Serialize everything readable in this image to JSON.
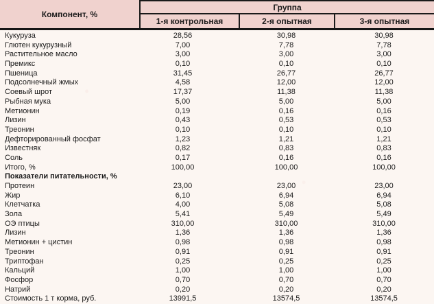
{
  "colors": {
    "header_bg": "#f0d2ce",
    "line": "#1a1a1a",
    "page_bg": "#fcf6f2",
    "text": "#1b1b1b"
  },
  "header": {
    "component_col": "Компонент, %",
    "group_label": "Группа",
    "group_columns": [
      "1-я контрольная",
      "2-я опытная",
      "3-я опытная"
    ]
  },
  "table": {
    "rows": [
      {
        "label": "Кукуруза",
        "values": [
          "28,56",
          "30,98",
          "30,98"
        ],
        "bold": false
      },
      {
        "label": "Глютен кукурузный",
        "values": [
          "7,00",
          "7,78",
          "7,78"
        ],
        "bold": false
      },
      {
        "label": "Растительное масло",
        "values": [
          "3,00",
          "3,00",
          "3,00"
        ],
        "bold": false
      },
      {
        "label": "Премикс",
        "values": [
          "0,10",
          "0,10",
          "0,10"
        ],
        "bold": false
      },
      {
        "label": "Пшеница",
        "values": [
          "31,45",
          "26,77",
          "26,77"
        ],
        "bold": false
      },
      {
        "label": "Подсолнечный жмых",
        "values": [
          "4,58",
          "12,00",
          "12,00"
        ],
        "bold": false
      },
      {
        "label": "Соевый шрот",
        "values": [
          "17,37",
          "11,38",
          "11,38"
        ],
        "bold": false
      },
      {
        "label": "Рыбная мука",
        "values": [
          "5,00",
          "5,00",
          "5,00"
        ],
        "bold": false
      },
      {
        "label": "Метионин",
        "values": [
          "0,19",
          "0,16",
          "0,16"
        ],
        "bold": false
      },
      {
        "label": "Лизин",
        "values": [
          "0,43",
          "0,53",
          "0,53"
        ],
        "bold": false
      },
      {
        "label": "Треонин",
        "values": [
          "0,10",
          "0,10",
          "0,10"
        ],
        "bold": false
      },
      {
        "label": "Дефторированный фосфат",
        "values": [
          "1,23",
          "1,21",
          "1,21"
        ],
        "bold": false
      },
      {
        "label": "Известняк",
        "values": [
          "0,82",
          "0,83",
          "0,83"
        ],
        "bold": false
      },
      {
        "label": "Соль",
        "values": [
          "0,17",
          "0,16",
          "0,16"
        ],
        "bold": false
      },
      {
        "label": "Итого, %",
        "values": [
          "100,00",
          "100,00",
          "100,00"
        ],
        "bold": false
      },
      {
        "label": "Показатели питательности, %",
        "values": [
          "",
          "",
          ""
        ],
        "bold": true
      },
      {
        "label": "Протеин",
        "values": [
          "23,00",
          "23,00",
          "23,00"
        ],
        "bold": false
      },
      {
        "label": "Жир",
        "values": [
          "6,10",
          "6,94",
          "6,94"
        ],
        "bold": false
      },
      {
        "label": "Клетчатка",
        "values": [
          "4,00",
          "5,08",
          "5,08"
        ],
        "bold": false
      },
      {
        "label": "Зола",
        "values": [
          "5,41",
          "5,49",
          "5,49"
        ],
        "bold": false
      },
      {
        "label": "ОЭ птицы",
        "values": [
          "310,00",
          "310,00",
          "310,00"
        ],
        "bold": false
      },
      {
        "label": "Лизин",
        "values": [
          "1,36",
          "1,36",
          "1,36"
        ],
        "bold": false
      },
      {
        "label": "Метионин + цистин",
        "values": [
          "0,98",
          "0,98",
          "0,98"
        ],
        "bold": false
      },
      {
        "label": "Треонин",
        "values": [
          "0,91",
          "0,91",
          "0,91"
        ],
        "bold": false
      },
      {
        "label": "Триптофан",
        "values": [
          "0,25",
          "0,25",
          "0,25"
        ],
        "bold": false
      },
      {
        "label": "Кальций",
        "values": [
          "1,00",
          "1,00",
          "1,00"
        ],
        "bold": false
      },
      {
        "label": "Фосфор",
        "values": [
          "0,70",
          "0,70",
          "0,70"
        ],
        "bold": false
      },
      {
        "label": "Натрий",
        "values": [
          "0,20",
          "0,20",
          "0,20"
        ],
        "bold": false
      },
      {
        "label": "Стоимость 1 т корма, руб.",
        "values": [
          "13991,5",
          "13574,5",
          "13574,5"
        ],
        "bold": false
      }
    ]
  }
}
